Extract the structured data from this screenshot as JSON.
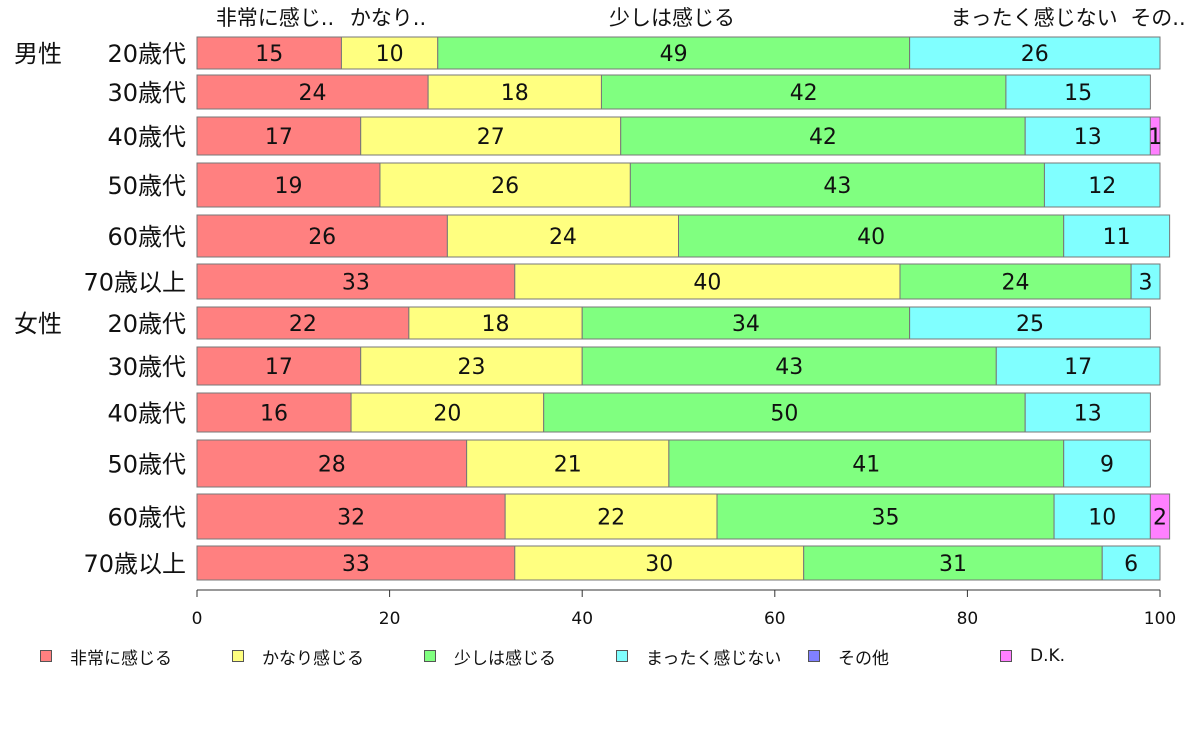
{
  "chart_data": {
    "type": "bar",
    "orientation": "horizontal",
    "stacked": true,
    "title": "",
    "xlabel": "",
    "ylabel": "",
    "xlim": [
      0,
      100
    ],
    "x_ticks": [
      "0",
      "20",
      "40",
      "60",
      "80",
      "100"
    ],
    "grid": false,
    "legend_position": "bottom",
    "top_labels": [
      "非常に感じ..",
      "かなり..",
      "少しは感じる",
      "まったく感じない",
      "その.."
    ],
    "groups": [
      {
        "label": "男性",
        "row": 0
      },
      {
        "label": "女性",
        "row": 6
      }
    ],
    "categories": [
      "20歳代",
      "30歳代",
      "40歳代",
      "50歳代",
      "60歳代",
      "70歳以上",
      "20歳代",
      "30歳代",
      "40歳代",
      "50歳代",
      "60歳代",
      "70歳以上"
    ],
    "series": [
      {
        "name": "非常に感じる",
        "color": "#ff8080",
        "values": [
          15,
          24,
          17,
          19,
          26,
          33,
          22,
          17,
          16,
          28,
          32,
          33
        ]
      },
      {
        "name": "かなり感じる",
        "color": "#ffff80",
        "values": [
          10,
          18,
          27,
          26,
          24,
          40,
          18,
          23,
          20,
          21,
          22,
          30
        ]
      },
      {
        "name": "少しは感じる",
        "color": "#80ff80",
        "values": [
          49,
          42,
          42,
          43,
          40,
          24,
          34,
          43,
          50,
          41,
          35,
          31
        ]
      },
      {
        "name": "まったく感じない",
        "color": "#80ffff",
        "values": [
          26,
          15,
          13,
          12,
          11,
          3,
          25,
          17,
          13,
          9,
          10,
          6
        ]
      },
      {
        "name": "その他",
        "color": "#8080ff",
        "values": [
          0,
          0,
          0,
          0,
          0,
          0,
          0,
          0,
          0,
          0,
          0,
          0
        ]
      },
      {
        "name": "D.K.",
        "color": "#ff80ff",
        "values": [
          0,
          0,
          1,
          0,
          0,
          0,
          0,
          0,
          0,
          0,
          2,
          0
        ]
      }
    ]
  }
}
